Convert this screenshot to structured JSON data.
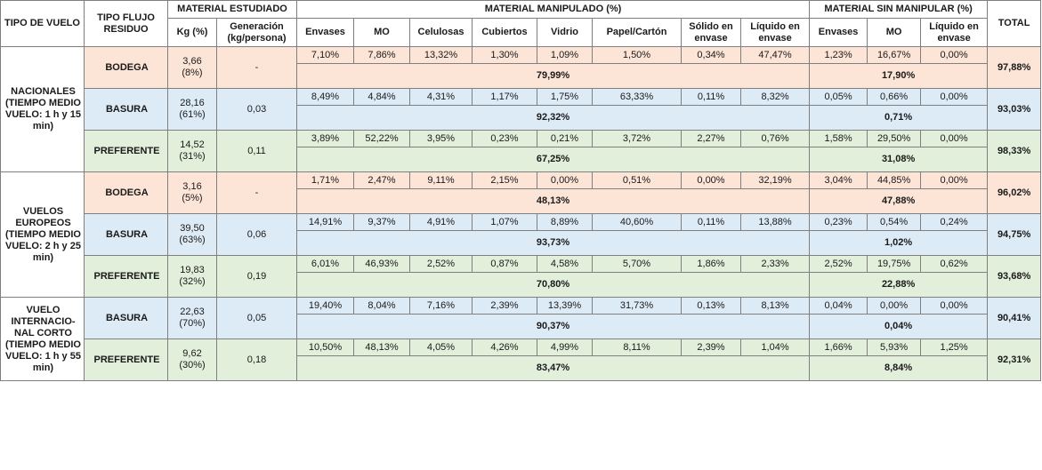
{
  "headers": {
    "tipo_vuelo": "TIPO DE VUELO",
    "tipo_flujo": "TIPO FLUJO RESIDUO",
    "material_estudiado": "MATERIAL ESTUDIADO",
    "material_manipulado": "MATERIAL MANIPULADO (%)",
    "material_sin_manipular": "MATERIAL SIN MANIPULAR (%)",
    "total": "TOTAL",
    "kg": "Kg (%)",
    "generacion": "Generación (kg/persona)",
    "manip_cols": [
      "Envases",
      "MO",
      "Celulosas",
      "Cubiertos",
      "Vidrio",
      "Papel/Cartón",
      "Sólido en envase",
      "Líquido en envase"
    ],
    "sin_cols": [
      "Envases",
      "MO",
      "Líquido en envase"
    ]
  },
  "colors": {
    "bodega": "#fce4d6",
    "basura": "#ddebf7",
    "preferente": "#e2efda"
  },
  "groups": [
    {
      "tipo": "NACIONALES (TIEMPO MEDIO VUELO: 1 h y 15 min)",
      "rows": [
        {
          "flujo": "BODEGA",
          "color": "peach",
          "kg": "3,66",
          "kg_pct": "(8%)",
          "gen": "-",
          "manip": [
            "7,10%",
            "7,86%",
            "13,32%",
            "1,30%",
            "1,09%",
            "1,50%",
            "0,34%",
            "47,47%"
          ],
          "manip_total": "79,99%",
          "sin": [
            "1,23%",
            "16,67%",
            "0,00%"
          ],
          "sin_total": "17,90%",
          "total": "97,88%"
        },
        {
          "flujo": "BASURA",
          "color": "blue",
          "kg": "28,16",
          "kg_pct": "(61%)",
          "gen": "0,03",
          "manip": [
            "8,49%",
            "4,84%",
            "4,31%",
            "1,17%",
            "1,75%",
            "63,33%",
            "0,11%",
            "8,32%"
          ],
          "manip_total": "92,32%",
          "sin": [
            "0,05%",
            "0,66%",
            "0,00%"
          ],
          "sin_total": "0,71%",
          "total": "93,03%"
        },
        {
          "flujo": "PREFERENTE",
          "color": "green",
          "kg": "14,52",
          "kg_pct": "(31%)",
          "gen": "0,11",
          "manip": [
            "3,89%",
            "52,22%",
            "3,95%",
            "0,23%",
            "0,21%",
            "3,72%",
            "2,27%",
            "0,76%"
          ],
          "manip_total": "67,25%",
          "sin": [
            "1,58%",
            "29,50%",
            "0,00%"
          ],
          "sin_total": "31,08%",
          "total": "98,33%"
        }
      ]
    },
    {
      "tipo": "VUELOS EUROPEOS (TIEMPO MEDIO VUELO: 2 h y 25 min)",
      "rows": [
        {
          "flujo": "BODEGA",
          "color": "peach",
          "kg": "3,16",
          "kg_pct": "(5%)",
          "gen": "-",
          "manip": [
            "1,71%",
            "2,47%",
            "9,11%",
            "2,15%",
            "0,00%",
            "0,51%",
            "0,00%",
            "32,19%"
          ],
          "manip_total": "48,13%",
          "sin": [
            "3,04%",
            "44,85%",
            "0,00%"
          ],
          "sin_total": "47,88%",
          "total": "96,02%"
        },
        {
          "flujo": "BASURA",
          "color": "blue",
          "kg": "39,50",
          "kg_pct": "(63%)",
          "gen": "0,06",
          "manip": [
            "14,91%",
            "9,37%",
            "4,91%",
            "1,07%",
            "8,89%",
            "40,60%",
            "0,11%",
            "13,88%"
          ],
          "manip_total": "93,73%",
          "sin": [
            "0,23%",
            "0,54%",
            "0,24%"
          ],
          "sin_total": "1,02%",
          "total": "94,75%"
        },
        {
          "flujo": "PREFERENTE",
          "color": "green",
          "kg": "19,83",
          "kg_pct": "(32%)",
          "gen": "0,19",
          "manip": [
            "6,01%",
            "46,93%",
            "2,52%",
            "0,87%",
            "4,58%",
            "5,70%",
            "1,86%",
            "2,33%"
          ],
          "manip_total": "70,80%",
          "sin": [
            "2,52%",
            "19,75%",
            "0,62%"
          ],
          "sin_total": "22,88%",
          "total": "93,68%"
        }
      ]
    },
    {
      "tipo": "VUELO INTERNACIO-NAL CORTO (TIEMPO MEDIO VUELO: 1 h y 55 min)",
      "rows": [
        {
          "flujo": "BASURA",
          "color": "blue",
          "kg": "22,63",
          "kg_pct": "(70%)",
          "gen": "0,05",
          "manip": [
            "19,40%",
            "8,04%",
            "7,16%",
            "2,39%",
            "13,39%",
            "31,73%",
            "0,13%",
            "8,13%"
          ],
          "manip_total": "90,37%",
          "sin": [
            "0,04%",
            "0,00%",
            "0,00%"
          ],
          "sin_total": "0,04%",
          "total": "90,41%"
        },
        {
          "flujo": "PREFERENTE",
          "color": "green",
          "kg": "9,62",
          "kg_pct": "(30%)",
          "gen": "0,18",
          "manip": [
            "10,50%",
            "48,13%",
            "4,05%",
            "4,26%",
            "4,99%",
            "8,11%",
            "2,39%",
            "1,04%"
          ],
          "manip_total": "83,47%",
          "sin": [
            "1,66%",
            "5,93%",
            "1,25%"
          ],
          "sin_total": "8,84%",
          "total": "92,31%"
        }
      ]
    }
  ]
}
